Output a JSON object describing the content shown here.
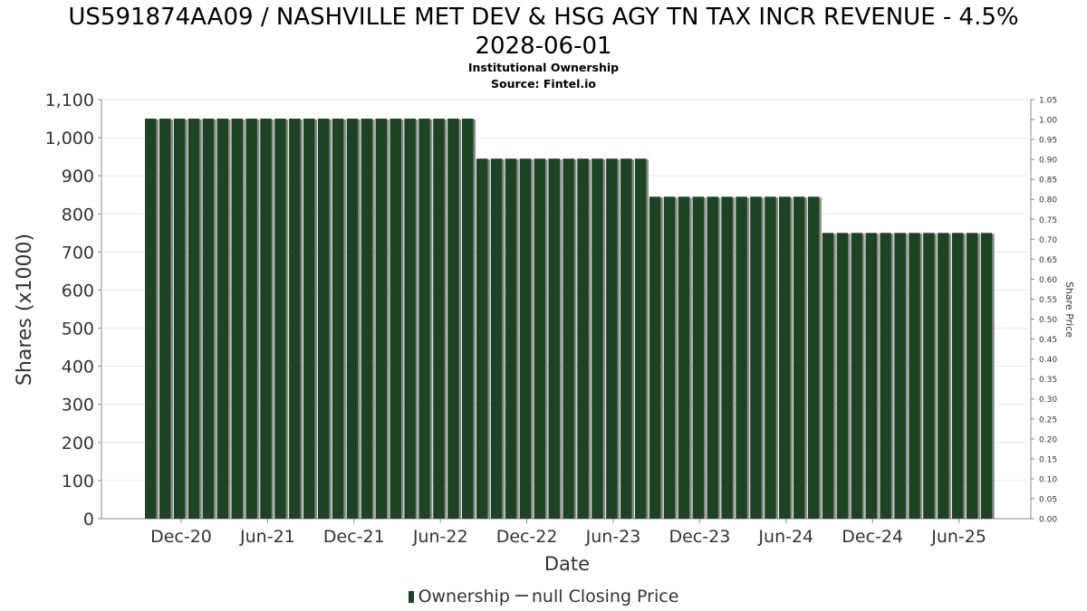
{
  "chart_title_line1": "US591874AA09 / NASHVILLE MET DEV & HSG AGY TN TAX INCR REVENUE - 4.5%",
  "chart_title_line2": "2028-06-01",
  "subtitle": "Institutional Ownership",
  "source": "Source: Fintel.io",
  "legend": {
    "ownership_label": "Ownership",
    "price_label": "null Closing Price"
  },
  "colors": {
    "bar": "#1b4324",
    "bar_shadow": "#8c8c8c",
    "grid": "#e6e6e6",
    "axis": "#888888"
  },
  "chart_data": {
    "type": "bar",
    "xlabel": "Date",
    "ylabel": "Shares (x1000)",
    "y2label": "Share Price",
    "ylim": [
      0,
      1100
    ],
    "y2lim": [
      0,
      1.05
    ],
    "yticks": [
      "0",
      "100",
      "200",
      "300",
      "400",
      "500",
      "600",
      "700",
      "800",
      "900",
      "1,000",
      "1,100"
    ],
    "y2ticks": [
      "0.00",
      "0.05",
      "0.10",
      "0.15",
      "0.20",
      "0.25",
      "0.30",
      "0.35",
      "0.40",
      "0.45",
      "0.50",
      "0.55",
      "0.60",
      "0.65",
      "0.70",
      "0.75",
      "0.80",
      "0.85",
      "0.90",
      "0.95",
      "1.00",
      "1.05"
    ],
    "xticks": [
      "Dec-20",
      "Jun-21",
      "Dec-21",
      "Jun-22",
      "Dec-22",
      "Jun-23",
      "Dec-23",
      "Jun-24",
      "Dec-24",
      "Jun-25"
    ],
    "grid": true,
    "legend_position": "bottom",
    "series": [
      {
        "name": "Ownership",
        "values": [
          1050,
          1050,
          1050,
          1050,
          1050,
          1050,
          1050,
          1050,
          1050,
          1050,
          1050,
          1050,
          1050,
          1050,
          1050,
          1050,
          1050,
          1050,
          1050,
          1050,
          1050,
          1050,
          1050,
          945,
          945,
          945,
          945,
          945,
          945,
          945,
          945,
          945,
          945,
          945,
          945,
          845,
          845,
          845,
          845,
          845,
          845,
          845,
          845,
          845,
          845,
          845,
          845,
          750,
          750,
          750,
          750,
          750,
          750,
          750,
          750,
          750,
          750,
          750,
          750
        ]
      }
    ]
  }
}
